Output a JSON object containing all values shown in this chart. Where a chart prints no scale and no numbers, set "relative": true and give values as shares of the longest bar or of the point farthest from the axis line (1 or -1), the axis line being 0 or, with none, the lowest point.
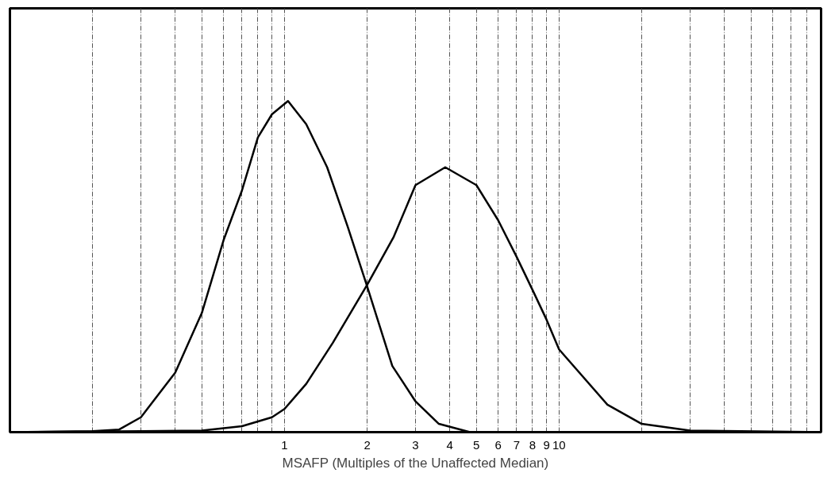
{
  "chart_data": {
    "type": "line",
    "relative": true,
    "log": "x",
    "xlabel": "MSAFP (Multiples of the Unaffected Median)",
    "xlim": [
      0.1,
      90
    ],
    "xticks": [
      {
        "value": 0.2,
        "label": null
      },
      {
        "value": 0.3,
        "label": null
      },
      {
        "value": 0.4,
        "label": null
      },
      {
        "value": 0.5,
        "label": null
      },
      {
        "value": 0.6,
        "label": null
      },
      {
        "value": 0.7,
        "label": null
      },
      {
        "value": 0.8,
        "label": null
      },
      {
        "value": 0.9,
        "label": null
      },
      1,
      2,
      3,
      4,
      5,
      6,
      7,
      8,
      9,
      10,
      {
        "value": 20,
        "label": null
      },
      {
        "value": 30,
        "label": null
      },
      {
        "value": 40,
        "label": null
      },
      {
        "value": 50,
        "label": null
      },
      {
        "value": 60,
        "label": null
      },
      {
        "value": 70,
        "label": null
      },
      {
        "value": 80,
        "label": null
      },
      {
        "value": 90,
        "label": null
      }
    ],
    "grid": "x",
    "marker": "none",
    "line_style": "solid",
    "series": [
      {
        "color": "#000000",
        "x": [
          0.1,
          0.2,
          0.25,
          0.3,
          0.4,
          0.5,
          0.6,
          0.7,
          0.8,
          0.9,
          1.03,
          1.2,
          1.43,
          1.7,
          2,
          2.47,
          3,
          3.65,
          4.74,
          10,
          90
        ],
        "values": [
          0,
          0.003,
          0.008,
          0.045,
          0.18,
          0.36,
          0.58,
          0.73,
          0.89,
          0.96,
          1.0,
          0.93,
          0.8,
          0.62,
          0.44,
          0.2,
          0.093,
          0.025,
          0,
          0,
          0
        ]
      },
      {
        "color": "#000000",
        "x": [
          0.1,
          0.3,
          0.5,
          0.7,
          0.9,
          1,
          1.2,
          1.5,
          2,
          2.5,
          3,
          3.85,
          5,
          6,
          7,
          8,
          9,
          10,
          15,
          20,
          30,
          90
        ],
        "values": [
          0,
          0.003,
          0.005,
          0.018,
          0.045,
          0.07,
          0.146,
          0.27,
          0.445,
          0.59,
          0.746,
          0.8,
          0.746,
          0.64,
          0.53,
          0.43,
          0.34,
          0.25,
          0.083,
          0.025,
          0.005,
          0
        ]
      }
    ]
  }
}
